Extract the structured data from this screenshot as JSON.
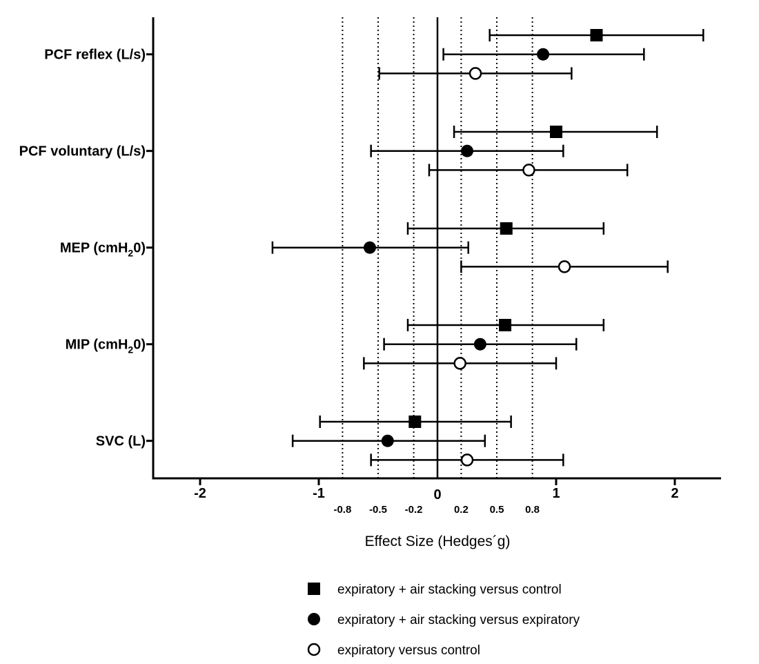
{
  "chart_data": {
    "type": "forest",
    "xlabel": "Effect Size (Hedges´g)",
    "xlim": [
      -2.4,
      2.4
    ],
    "x_ticks": [
      {
        "value": -2,
        "label": "-2"
      },
      {
        "value": -1,
        "label": "-1"
      },
      {
        "value": 0,
        "label": "0"
      },
      {
        "value": 1,
        "label": "1"
      },
      {
        "value": 2,
        "label": "2"
      }
    ],
    "reference_lines": [
      {
        "value": -0.8,
        "label": "-0.8"
      },
      {
        "value": -0.5,
        "label": "-0.5"
      },
      {
        "value": -0.2,
        "label": "-0.2"
      },
      {
        "value": 0.2,
        "label": "0.2"
      },
      {
        "value": 0.5,
        "label": "0.5"
      },
      {
        "value": 0.8,
        "label": "0.8"
      }
    ],
    "zero_line": true,
    "categories": [
      {
        "name": "PCF reflex (L/s)",
        "main": "PCF reflex (L/s)",
        "sub": "",
        "tail": ""
      },
      {
        "name": "PCF voluntary (L/s)",
        "main": "PCF voluntary (L/s)",
        "sub": "",
        "tail": ""
      },
      {
        "name": "MEP (cmH20)",
        "main": "MEP (cmH",
        "sub": "2",
        "tail": "0)"
      },
      {
        "name": "MIP (cmH20)",
        "main": "MIP (cmH",
        "sub": "2",
        "tail": "0)"
      },
      {
        "name": "SVC (L)",
        "main": "SVC (L)",
        "sub": "",
        "tail": ""
      }
    ],
    "series": [
      {
        "name": "expiratory + air stacking versus control",
        "marker": "square-filled",
        "estimates": [
          1.34,
          1.0,
          0.58,
          0.57,
          -0.19
        ],
        "ci_low": [
          0.44,
          0.14,
          -0.25,
          -0.25,
          -0.99
        ],
        "ci_high": [
          2.24,
          1.85,
          1.4,
          1.4,
          0.62
        ]
      },
      {
        "name": "expiratory + air stacking versus expiratory",
        "marker": "circle-filled",
        "estimates": [
          0.89,
          0.25,
          -0.57,
          0.36,
          -0.42
        ],
        "ci_low": [
          0.05,
          -0.56,
          -1.39,
          -0.45,
          -1.22
        ],
        "ci_high": [
          1.74,
          1.06,
          0.26,
          1.17,
          0.4
        ]
      },
      {
        "name": "expiratory versus control",
        "marker": "circle-open",
        "estimates": [
          0.32,
          0.77,
          1.07,
          0.19,
          0.25
        ],
        "ci_low": [
          -0.49,
          -0.07,
          0.2,
          -0.62,
          -0.56
        ],
        "ci_high": [
          1.13,
          1.6,
          1.94,
          1.0,
          1.06
        ]
      }
    ],
    "legend_position": "bottom-center",
    "grid": false
  }
}
